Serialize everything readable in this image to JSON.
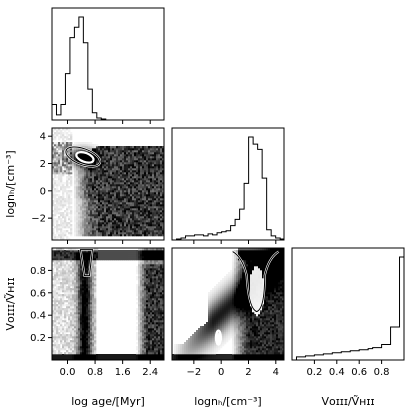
{
  "chart_data": {
    "type": "corner",
    "parameters": [
      {
        "key": "age",
        "label": "log age/[Myr]",
        "range": [
          -0.45,
          2.8
        ],
        "ticks": [
          0.0,
          0.8,
          1.6,
          2.4
        ],
        "tick_labels": [
          "0.0",
          "0.8",
          "1.6",
          "2.4"
        ]
      },
      {
        "key": "nH",
        "label": "lognₕ/[cm⁻³]",
        "range": [
          -3.6,
          4.6
        ],
        "ticks": [
          -2,
          0,
          2,
          4
        ],
        "tick_labels": [
          "−2",
          "0",
          "2",
          "4"
        ]
      },
      {
        "key": "vratio",
        "label": "Vᴏɪɪɪ/Ṽʜɪɪ",
        "range": [
          0.0,
          1.0
        ],
        "ticks": [
          0.2,
          0.4,
          0.6,
          0.8
        ],
        "tick_labels": [
          "0.2",
          "0.4",
          "0.6",
          "0.8"
        ]
      }
    ],
    "y_tick_labels": {
      "nH": [
        "−2",
        "0",
        "2",
        "4"
      ],
      "vratio": [
        "0.2",
        "0.4",
        "0.6",
        "0.8"
      ]
    },
    "histograms": {
      "age": {
        "edges": [
          -0.45,
          -0.32,
          -0.19,
          -0.06,
          0.07,
          0.2,
          0.33,
          0.46,
          0.59,
          0.72,
          0.85,
          0.98,
          1.11,
          1.24,
          1.37,
          1.5,
          1.63,
          1.76,
          1.89,
          2.02,
          2.15,
          2.28,
          2.41,
          2.54,
          2.67,
          2.8
        ],
        "counts": [
          0.15,
          0.05,
          0.15,
          0.45,
          0.8,
          0.9,
          1.0,
          0.75,
          0.3,
          0.07,
          0.02,
          0.01,
          0,
          0,
          0,
          0,
          0,
          0,
          0,
          0,
          0,
          0,
          0,
          0,
          0
        ]
      },
      "nH": {
        "edges": [
          -3.6,
          -3.27,
          -2.94,
          -2.61,
          -2.28,
          -1.95,
          -1.62,
          -1.29,
          -0.96,
          -0.63,
          -0.3,
          0.03,
          0.36,
          0.69,
          1.02,
          1.35,
          1.68,
          2.01,
          2.34,
          2.67,
          3.0,
          3.33,
          3.66,
          3.99,
          4.32,
          4.6
        ],
        "counts": [
          0,
          0.01,
          0.02,
          0.04,
          0.04,
          0.05,
          0.05,
          0.04,
          0.06,
          0.05,
          0.07,
          0.08,
          0.09,
          0.14,
          0.2,
          0.3,
          0.55,
          1.0,
          0.93,
          0.88,
          0.6,
          0.1,
          0.04,
          0.02,
          0.01
        ]
      },
      "vratio": {
        "edges": [
          0.0,
          0.04,
          0.08,
          0.12,
          0.16,
          0.2,
          0.24,
          0.28,
          0.32,
          0.36,
          0.4,
          0.44,
          0.48,
          0.52,
          0.56,
          0.6,
          0.64,
          0.68,
          0.72,
          0.76,
          0.8,
          0.84,
          0.88,
          0.92,
          0.96,
          1.0
        ],
        "counts": [
          0,
          0.03,
          0.03,
          0.04,
          0.04,
          0.05,
          0.05,
          0.06,
          0.06,
          0.07,
          0.07,
          0.08,
          0.08,
          0.09,
          0.09,
          0.1,
          0.1,
          0.11,
          0.12,
          0.12,
          0.15,
          0.15,
          0.32,
          0.32,
          1.0
        ]
      }
    },
    "joint_peaks": {
      "age_vs_nH": {
        "x": 0.45,
        "y": 2.5
      },
      "age_vs_vratio": {
        "x": 0.55,
        "y": 0.95
      },
      "nH_vs_vratio": {
        "x": 2.6,
        "y": 0.95
      }
    },
    "colors": {
      "density": "#000000",
      "contour_outline": "#ffffff",
      "frame": "#000000"
    }
  }
}
